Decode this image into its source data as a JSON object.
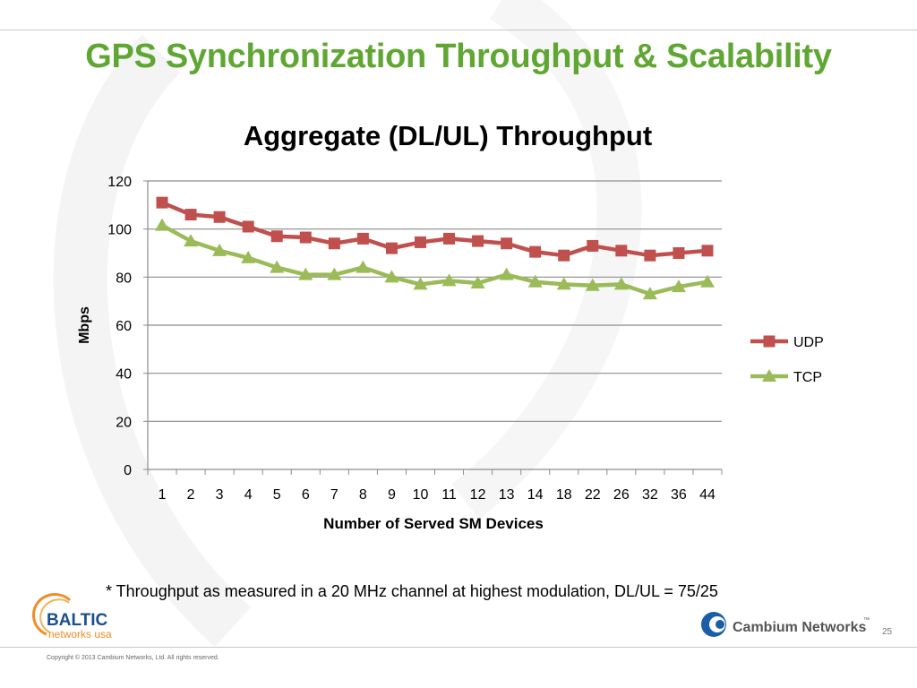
{
  "slide": {
    "title": "GPS Synchronization Throughput & Scalability",
    "footnote": "* Throughput as measured in a 20 MHz channel at highest modulation, DL/UL = 75/25",
    "page_number": "25",
    "copyright": "Copyright © 2013 Cambium Networks, Ltd. All rights reserved.",
    "logos": {
      "baltic_line1": "BALTIC",
      "baltic_line2": "networks usa",
      "cambium": "Cambium Networks",
      "cambium_tm": "™"
    },
    "colors": {
      "title": "#5fa732",
      "udp": "#c0504d",
      "tcp": "#9bbb59",
      "baltic_blue": "#1b4f8a",
      "baltic_orange": "#f28c28",
      "cambium_blue": "#1a5ea8"
    }
  },
  "chart_data": {
    "type": "line",
    "title": "Aggregate (DL/UL) Throughput",
    "xlabel": "Number of Served SM Devices",
    "ylabel": "Mbps",
    "categories": [
      "1",
      "2",
      "3",
      "4",
      "5",
      "6",
      "7",
      "8",
      "9",
      "10",
      "11",
      "12",
      "13",
      "14",
      "18",
      "22",
      "26",
      "32",
      "36",
      "44"
    ],
    "ylim": [
      0,
      120
    ],
    "yticks": [
      0,
      20,
      40,
      60,
      80,
      100,
      120
    ],
    "grid": true,
    "legend_position": "right",
    "series": [
      {
        "name": "UDP",
        "marker": "square",
        "values": [
          111,
          106,
          105,
          101,
          97,
          96.5,
          94,
          96,
          92,
          94.5,
          96,
          95,
          94,
          90.5,
          89,
          93,
          91,
          89,
          90,
          91
        ]
      },
      {
        "name": "TCP",
        "marker": "triangle",
        "values": [
          101.5,
          95,
          91,
          88,
          84,
          81,
          81,
          84,
          80,
          77,
          78.5,
          77.5,
          81,
          78,
          77,
          76.5,
          77,
          73,
          76,
          78
        ]
      }
    ]
  }
}
